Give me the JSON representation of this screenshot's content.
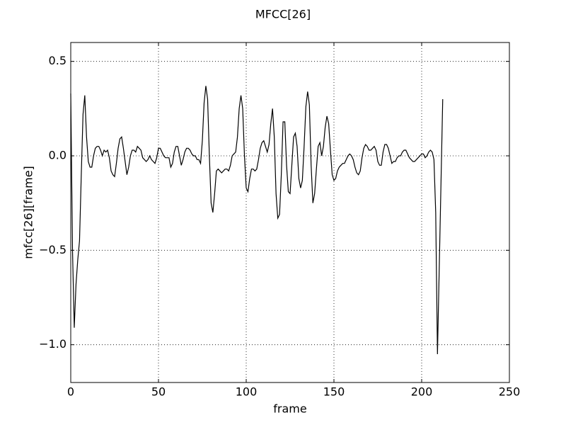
{
  "chart_data": {
    "type": "line",
    "title": "MFCC[26]",
    "xlabel": "frame",
    "ylabel": "mfcc[26][frame]",
    "x": [
      0,
      1,
      2,
      3,
      4,
      5,
      6,
      7,
      8,
      9,
      10,
      11,
      12,
      13,
      14,
      15,
      16,
      17,
      18,
      19,
      20,
      21,
      22,
      23,
      24,
      25,
      26,
      27,
      28,
      29,
      30,
      31,
      32,
      33,
      34,
      35,
      36,
      37,
      38,
      39,
      40,
      41,
      42,
      43,
      44,
      45,
      46,
      47,
      48,
      49,
      50,
      51,
      52,
      53,
      54,
      55,
      56,
      57,
      58,
      59,
      60,
      61,
      62,
      63,
      64,
      65,
      66,
      67,
      68,
      69,
      70,
      71,
      72,
      73,
      74,
      75,
      76,
      77,
      78,
      79,
      80,
      81,
      82,
      83,
      84,
      85,
      86,
      87,
      88,
      89,
      90,
      91,
      92,
      93,
      94,
      95,
      96,
      97,
      98,
      99,
      100,
      101,
      102,
      103,
      104,
      105,
      106,
      107,
      108,
      109,
      110,
      111,
      112,
      113,
      114,
      115,
      116,
      117,
      118,
      119,
      120,
      121,
      122,
      123,
      124,
      125,
      126,
      127,
      128,
      129,
      130,
      131,
      132,
      133,
      134,
      135,
      136,
      137,
      138,
      139,
      140,
      141,
      142,
      143,
      144,
      145,
      146,
      147,
      148,
      149,
      150,
      151,
      152,
      153,
      154,
      155,
      156,
      157,
      158,
      159,
      160,
      161,
      162,
      163,
      164,
      165,
      166,
      167,
      168,
      169,
      170,
      171,
      172,
      173,
      174,
      175,
      176,
      177,
      178,
      179,
      180,
      181,
      182,
      183,
      184,
      185,
      186,
      187,
      188,
      189,
      190,
      191,
      192,
      193,
      194,
      195,
      196,
      197,
      198,
      199,
      200,
      201,
      202,
      203,
      204,
      205,
      206,
      207,
      208,
      209,
      210,
      211,
      212
    ],
    "series": [
      {
        "color": "#000000",
        "values": [
          0.33,
          -0.5,
          -0.91,
          -0.68,
          -0.55,
          -0.45,
          -0.1,
          0.22,
          0.32,
          0.1,
          -0.03,
          -0.06,
          -0.06,
          0.0,
          0.04,
          0.05,
          0.05,
          0.03,
          0.0,
          0.03,
          0.02,
          0.03,
          -0.01,
          -0.08,
          -0.1,
          -0.11,
          -0.04,
          0.04,
          0.09,
          0.1,
          0.04,
          -0.03,
          -0.1,
          -0.06,
          0.0,
          0.03,
          0.03,
          0.02,
          0.05,
          0.04,
          0.03,
          -0.01,
          -0.02,
          -0.03,
          -0.02,
          0.0,
          -0.02,
          -0.03,
          -0.04,
          -0.01,
          0.04,
          0.04,
          0.02,
          0.0,
          -0.01,
          -0.01,
          -0.01,
          -0.06,
          -0.04,
          0.02,
          0.05,
          0.05,
          0.0,
          -0.05,
          -0.02,
          0.02,
          0.04,
          0.04,
          0.03,
          0.01,
          0.0,
          0.0,
          -0.02,
          -0.02,
          -0.04,
          0.08,
          0.28,
          0.37,
          0.3,
          0.0,
          -0.25,
          -0.3,
          -0.2,
          -0.08,
          -0.07,
          -0.08,
          -0.09,
          -0.08,
          -0.07,
          -0.07,
          -0.08,
          -0.05,
          0.0,
          0.01,
          0.02,
          0.1,
          0.25,
          0.32,
          0.25,
          0.0,
          -0.17,
          -0.19,
          -0.12,
          -0.07,
          -0.07,
          -0.08,
          -0.07,
          -0.02,
          0.04,
          0.07,
          0.08,
          0.05,
          0.02,
          0.06,
          0.17,
          0.25,
          0.1,
          -0.2,
          -0.33,
          -0.31,
          -0.1,
          0.18,
          0.18,
          -0.05,
          -0.19,
          -0.2,
          -0.05,
          0.1,
          0.12,
          0.05,
          -0.12,
          -0.17,
          -0.13,
          0.05,
          0.26,
          0.34,
          0.27,
          -0.05,
          -0.25,
          -0.2,
          -0.07,
          0.05,
          0.07,
          0.0,
          0.05,
          0.15,
          0.21,
          0.17,
          0.03,
          -0.1,
          -0.13,
          -0.12,
          -0.08,
          -0.06,
          -0.05,
          -0.04,
          -0.04,
          -0.02,
          0.0,
          0.01,
          0.0,
          -0.02,
          -0.06,
          -0.09,
          -0.1,
          -0.08,
          -0.01,
          0.04,
          0.06,
          0.05,
          0.03,
          0.03,
          0.04,
          0.05,
          0.03,
          -0.03,
          -0.05,
          -0.05,
          0.02,
          0.06,
          0.06,
          0.04,
          0.0,
          -0.04,
          -0.03,
          -0.03,
          -0.01,
          0.0,
          0.0,
          0.02,
          0.03,
          0.03,
          0.01,
          -0.01,
          -0.02,
          -0.03,
          -0.03,
          -0.02,
          -0.01,
          0.0,
          0.01,
          0.01,
          -0.01,
          0.0,
          0.02,
          0.03,
          0.02,
          -0.02,
          -0.3,
          -1.05,
          -0.6,
          -0.15,
          0.3
        ]
      }
    ],
    "xlim": [
      0,
      250
    ],
    "ylim": [
      -1.2,
      0.6
    ],
    "xticks": [
      0,
      50,
      100,
      150,
      200,
      250
    ],
    "yticks": [
      {
        "value": -1.0,
        "label": "−1.0"
      },
      {
        "value": -0.5,
        "label": "−0.5"
      },
      {
        "value": 0.0,
        "label": "0.0"
      },
      0.5
    ],
    "grid": true
  }
}
